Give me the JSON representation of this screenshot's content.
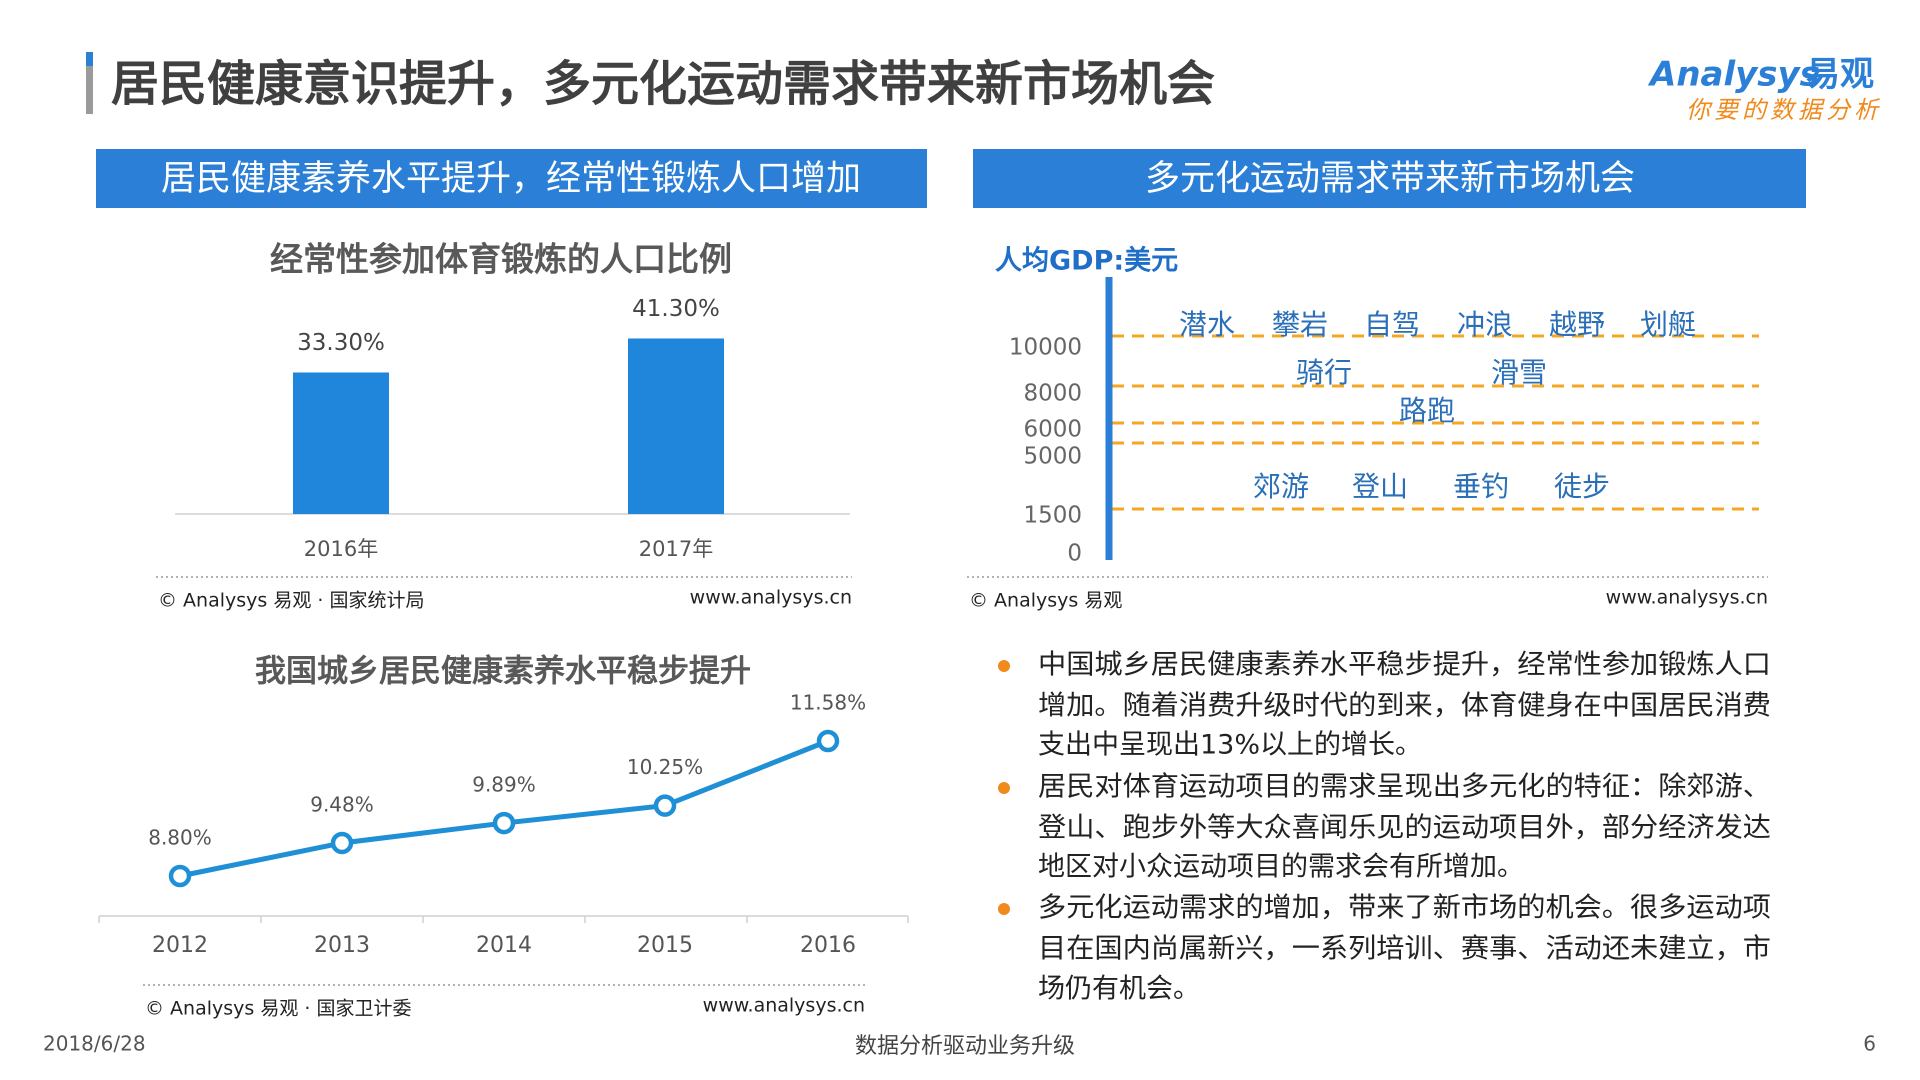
{
  "header": {
    "title": "居民健康意识提升，多元化运动需求带来新市场机会",
    "logo": {
      "brand": "Analysys",
      "brand_cn": "易观",
      "slogan": "你要的数据分析"
    }
  },
  "panels": {
    "left": "居民健康素养水平提升，经常性锻炼人口增加",
    "right": "多元化运动需求带来新市场机会"
  },
  "chart_data": [
    {
      "type": "bar",
      "title": "经常性参加体育锻炼的人口比例",
      "categories": [
        "2016年",
        "2017年"
      ],
      "values": [
        33.3,
        41.3
      ],
      "value_labels": [
        "33.30%",
        "41.30%"
      ],
      "color": "#1f86dc",
      "source": "© Analysys 易观 · 国家统计局",
      "website": "www.analysys.cn"
    },
    {
      "type": "line",
      "title": "我国城乡居民健康素养水平稳步提升",
      "categories": [
        "2012",
        "2013",
        "2014",
        "2015",
        "2016"
      ],
      "values": [
        8.8,
        9.48,
        9.89,
        10.25,
        11.58
      ],
      "value_labels": [
        "8.80%",
        "9.48%",
        "9.89%",
        "10.25%",
        "11.58%"
      ],
      "color": "#1f8fd6",
      "source": "© Analysys 易观 · 国家卫计委",
      "website": "www.analysys.cn"
    },
    {
      "type": "levels",
      "title": "人均GDP:美元",
      "yticks": [
        10000,
        8000,
        6000,
        5000,
        1500,
        0
      ],
      "levels": [
        {
          "value": 10000,
          "activities": [
            "潜水",
            "攀岩",
            "自驾",
            "冲浪",
            "越野",
            "划艇"
          ]
        },
        {
          "value": 8000,
          "activities": [
            "骑行",
            "滑雪"
          ]
        },
        {
          "value": 6000,
          "activities": [
            "路跑"
          ]
        },
        {
          "value": 5000,
          "activities": []
        },
        {
          "value": 1500,
          "activities": [
            "郊游",
            "登山",
            "垂钓",
            "徒步"
          ]
        }
      ],
      "color": "#f5a623",
      "source": "© Analysys 易观",
      "website": "www.analysys.cn"
    }
  ],
  "bullets": [
    [
      "中国城乡居民健康素养水平稳步提升，经常性参加锻炼人口",
      "增加。随着消费升级时代的到来，体育健身在中国居民消费",
      "支出中呈现出13%以上的增长。"
    ],
    [
      "居民对体育运动项目的需求呈现出多元化的特征：除郊游、",
      "登山、跑步外等大众喜闻乐见的运动项目外，部分经济发达",
      "地区对小众运动项目的需求会有所增加。"
    ],
    [
      "多元化运动需求的增加，带来了新市场的机会。很多运动项",
      "目在国内尚属新兴，一系列培训、赛事、活动还未建立，市",
      "场仍有机会。"
    ]
  ],
  "footer": {
    "date": "2018/6/28",
    "tagline": "数据分析驱动业务升级",
    "page": "6"
  }
}
